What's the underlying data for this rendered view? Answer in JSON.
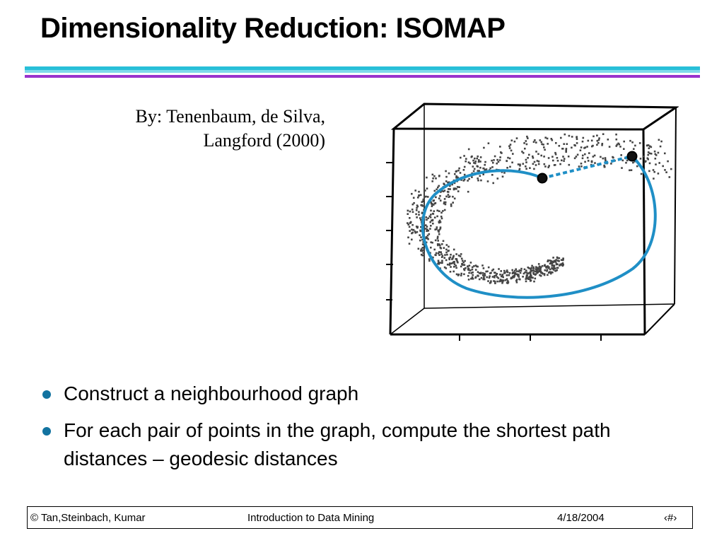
{
  "slide": {
    "title": "Dimensionality Reduction: ISOMAP",
    "byline": [
      "By: Tenenbaum, de Silva,",
      "Langford (2000)"
    ],
    "bullets": [
      "Construct a neighbourhood graph",
      "For each pair of points in the graph, compute the shortest path distances – geodesic distances"
    ]
  },
  "footer": {
    "left": "© Tan,Steinbach, Kumar",
    "center": "Introduction to Data Mining",
    "date": "4/18/2004",
    "page": "‹#›"
  },
  "colors": {
    "rule_top": "#28bfd8",
    "rule_bottom": "#9932cc",
    "bullet": "#1273a0",
    "geodesic_path": "#1f8fc6"
  }
}
